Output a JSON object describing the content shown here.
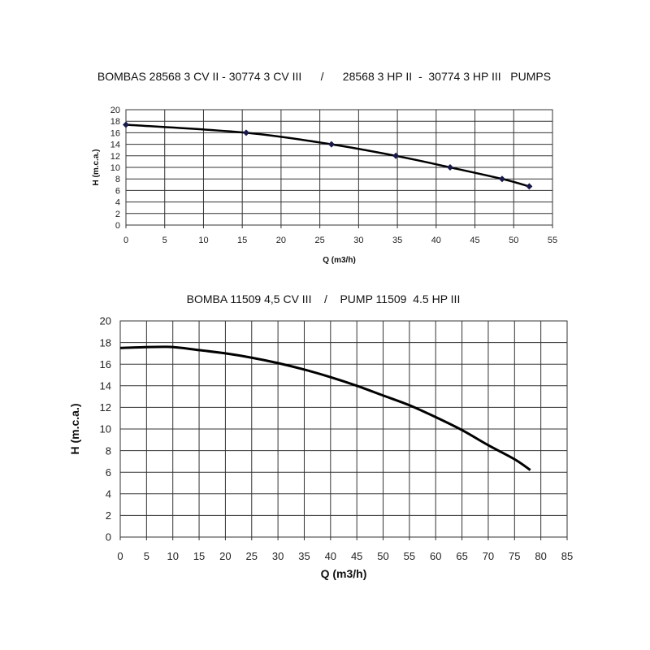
{
  "chart_data": [
    {
      "type": "line",
      "title": "BOMBAS 28568 3 CV II - 30774 3 CV III      /      28568 3 HP II  -  30774 3 HP III   PUMPS",
      "xlabel": "Q (m3/h)",
      "ylabel": "H (m.c.a.)",
      "xlim": [
        0,
        55
      ],
      "ylim": [
        0,
        20
      ],
      "xticks": [
        0,
        5,
        10,
        15,
        20,
        25,
        30,
        35,
        40,
        45,
        50,
        55
      ],
      "yticks": [
        0,
        2,
        4,
        6,
        8,
        10,
        12,
        14,
        16,
        18,
        20
      ],
      "grid": true,
      "markers": true,
      "line_color": "#000000",
      "marker_color": "#1a1a4a",
      "series": [
        {
          "x": [
            0,
            15.5,
            26.5,
            34.8,
            41.8,
            48.5,
            52
          ],
          "y": [
            17.4,
            16,
            14,
            12,
            10,
            8,
            6.7
          ]
        }
      ]
    },
    {
      "type": "line",
      "title": "BOMBA 11509 4,5 CV III    /    PUMP 11509  4.5 HP III",
      "xlabel": "Q (m3/h)",
      "ylabel": "H (m.c.a.)",
      "xlim": [
        0,
        85
      ],
      "ylim": [
        0,
        20
      ],
      "xticks": [
        0,
        5,
        10,
        15,
        20,
        25,
        30,
        35,
        40,
        45,
        50,
        55,
        60,
        65,
        70,
        75,
        80,
        85
      ],
      "yticks": [
        0,
        2,
        4,
        6,
        8,
        10,
        12,
        14,
        16,
        18,
        20
      ],
      "grid": true,
      "markers": false,
      "line_color": "#000000",
      "series": [
        {
          "x": [
            0,
            9,
            15,
            20,
            25,
            30,
            35,
            40,
            45,
            50,
            55,
            60,
            65,
            70,
            75,
            78
          ],
          "y": [
            17.5,
            17.6,
            17.3,
            17,
            16.6,
            16.1,
            15.5,
            14.8,
            14,
            13.1,
            12.2,
            11.1,
            9.9,
            8.5,
            7.2,
            6.2
          ]
        }
      ]
    }
  ]
}
